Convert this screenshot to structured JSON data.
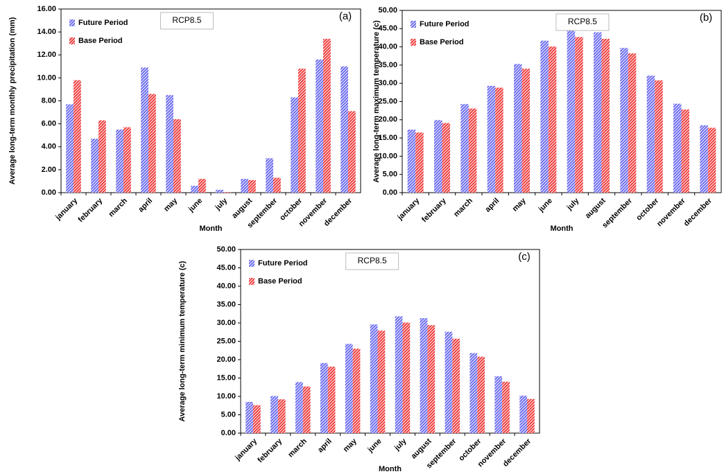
{
  "chart_data": [
    {
      "type": "bar",
      "panel_label": "(a)",
      "annotation": "RCP8.5",
      "x_label": "Month",
      "y_label": "Average long-term monthly precipitation (mm)",
      "categories": [
        "january",
        "february",
        "march",
        "april",
        "may",
        "june",
        "july",
        "august",
        "september",
        "october",
        "november",
        "december"
      ],
      "series": [
        {
          "name": "Future Period",
          "color": "#6a6af0",
          "values": [
            7.7,
            4.7,
            5.5,
            10.9,
            8.5,
            0.6,
            0.25,
            1.2,
            3.0,
            8.3,
            11.6,
            11.0
          ]
        },
        {
          "name": "Base Period",
          "color": "#f03a3a",
          "values": [
            9.8,
            6.3,
            5.7,
            8.6,
            6.4,
            1.2,
            0.05,
            1.1,
            1.3,
            10.8,
            13.4,
            7.1
          ]
        }
      ],
      "ylim": [
        0,
        16
      ],
      "yticks": [
        {
          "value": 0,
          "label": "0.00"
        },
        {
          "value": 2,
          "label": "2.00"
        },
        {
          "value": 4,
          "label": "4.00"
        },
        {
          "value": 6,
          "label": "6.00"
        },
        {
          "value": 8,
          "label": "8.00"
        },
        {
          "value": 10,
          "label": "10.00"
        },
        {
          "value": 12,
          "label": "12.00"
        },
        {
          "value": 14,
          "label": "14.00"
        },
        {
          "value": 16,
          "label": "16.00"
        }
      ]
    },
    {
      "type": "bar",
      "panel_label": "(b)",
      "annotation": "RCP8.5",
      "x_label": "Month",
      "y_label": "Average long-term maximum temperature (c)",
      "categories": [
        "january",
        "february",
        "march",
        "april",
        "may",
        "june",
        "july",
        "august",
        "september",
        "october",
        "november",
        "december"
      ],
      "series": [
        {
          "name": "Future Period",
          "color": "#6a6af0",
          "values": [
            17.3,
            19.9,
            24.3,
            29.3,
            35.3,
            41.7,
            44.5,
            44.0,
            39.7,
            32.1,
            24.4,
            18.5
          ]
        },
        {
          "name": "Base Period",
          "color": "#f03a3a",
          "values": [
            16.5,
            19.1,
            23.1,
            28.8,
            34.0,
            40.1,
            42.7,
            42.2,
            38.2,
            30.8,
            22.8,
            17.8
          ]
        }
      ],
      "ylim": [
        0,
        50
      ],
      "yticks": [
        {
          "value": 0,
          "label": "0.00"
        },
        {
          "value": 5,
          "label": "5.00"
        },
        {
          "value": 10,
          "label": "10.00"
        },
        {
          "value": 15,
          "label": "15.00"
        },
        {
          "value": 20,
          "label": "20.00"
        },
        {
          "value": 25,
          "label": "25.00"
        },
        {
          "value": 30,
          "label": "30.00"
        },
        {
          "value": 35,
          "label": "35.00"
        },
        {
          "value": 40,
          "label": "40.00"
        },
        {
          "value": 45,
          "label": "45.00"
        },
        {
          "value": 50,
          "label": "50.00"
        }
      ]
    },
    {
      "type": "bar",
      "panel_label": "(c)",
      "annotation": "RCP8.5",
      "x_label": "Month",
      "y_label": "Average long-term minimum temperature (c)",
      "categories": [
        "january",
        "february",
        "march",
        "april",
        "may",
        "june",
        "july",
        "august",
        "september",
        "october",
        "november",
        "december"
      ],
      "series": [
        {
          "name": "Future Period",
          "color": "#6a6af0",
          "values": [
            8.5,
            10.1,
            13.9,
            19.1,
            24.3,
            29.6,
            31.8,
            31.3,
            27.6,
            21.8,
            15.5,
            10.2
          ]
        },
        {
          "name": "Base Period",
          "color": "#f03a3a",
          "values": [
            7.6,
            9.2,
            12.7,
            18.1,
            23.0,
            27.9,
            30.1,
            29.4,
            25.7,
            20.8,
            14.0,
            9.3
          ]
        }
      ],
      "ylim": [
        0,
        50
      ],
      "yticks": [
        {
          "value": 0,
          "label": "0.00"
        },
        {
          "value": 5,
          "label": "5.00"
        },
        {
          "value": 10,
          "label": "10.00"
        },
        {
          "value": 15,
          "label": "15.00"
        },
        {
          "value": 20,
          "label": "20.00"
        },
        {
          "value": 25,
          "label": "25.00"
        },
        {
          "value": 30,
          "label": "30.00"
        },
        {
          "value": 35,
          "label": "35.00"
        },
        {
          "value": 40,
          "label": "40.00"
        },
        {
          "value": 45,
          "label": "45.00"
        },
        {
          "value": 50,
          "label": "50.00"
        }
      ]
    }
  ]
}
